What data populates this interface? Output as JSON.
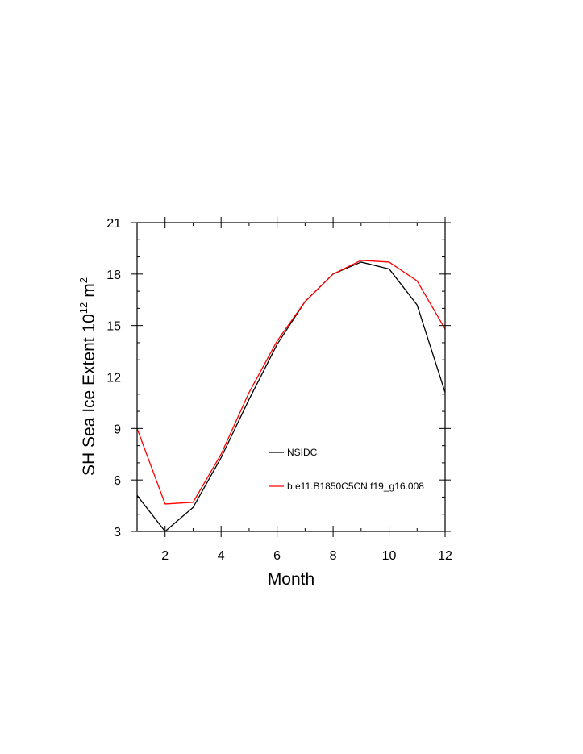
{
  "chart_data": {
    "type": "line",
    "xlabel": "Month",
    "ylabel_text": "SH Sea Ice Extent 10",
    "ylabel_exp": "12",
    "ylabel_unit": "m",
    "ylabel_unit_exp": "2",
    "xlim": [
      1,
      12
    ],
    "ylim": [
      3,
      21
    ],
    "x_ticks": [
      2,
      4,
      6,
      8,
      10,
      12
    ],
    "y_ticks": [
      3,
      6,
      9,
      12,
      15,
      18,
      21
    ],
    "x_tick_labels": [
      "2",
      "4",
      "6",
      "8",
      "10",
      "12"
    ],
    "y_tick_labels": [
      "3",
      "6",
      "9",
      "12",
      "15",
      "18",
      "21"
    ],
    "x": [
      1,
      2,
      3,
      4,
      5,
      6,
      7,
      8,
      9,
      10,
      11,
      12
    ],
    "series": [
      {
        "name": "NSIDC",
        "color": "#000000",
        "values": [
          5.1,
          3.0,
          4.4,
          7.3,
          10.7,
          13.9,
          16.4,
          18.0,
          18.7,
          18.3,
          16.2,
          11.1
        ]
      },
      {
        "name": "b.e11.B1850C5CN.f19_g16.008",
        "color": "#ff0000",
        "values": [
          9.0,
          4.6,
          4.7,
          7.5,
          11.1,
          14.1,
          16.4,
          18.0,
          18.8,
          18.7,
          17.6,
          14.8
        ]
      }
    ],
    "grid": false,
    "legend_position": "lower-right"
  }
}
